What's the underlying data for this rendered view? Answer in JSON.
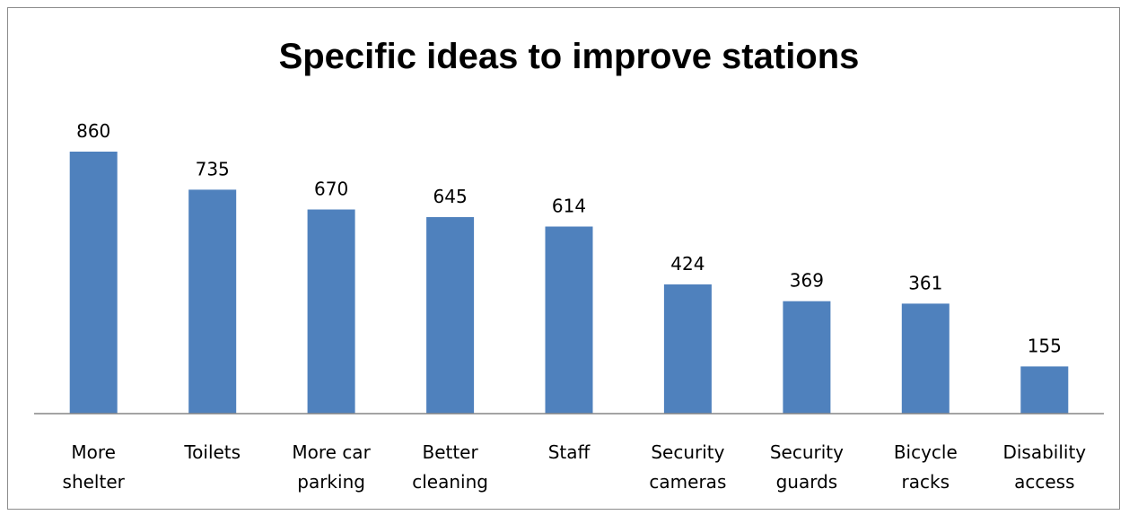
{
  "chart_data": {
    "type": "bar",
    "title": "Specific ideas to improve stations",
    "categories": [
      [
        "More",
        "shelter"
      ],
      [
        "Toilets"
      ],
      [
        "More car",
        "parking"
      ],
      [
        "Better",
        "cleaning"
      ],
      [
        "Staff"
      ],
      [
        "Security",
        "cameras"
      ],
      [
        "Security",
        "guards"
      ],
      [
        "Bicycle",
        "racks"
      ],
      [
        "Disability",
        "access"
      ]
    ],
    "values": [
      860,
      735,
      670,
      645,
      614,
      424,
      369,
      361,
      155
    ],
    "data_labels": true,
    "gridlines": false,
    "legend": "none",
    "bar_color": "#4f81bd",
    "axis_color": "#868686"
  }
}
